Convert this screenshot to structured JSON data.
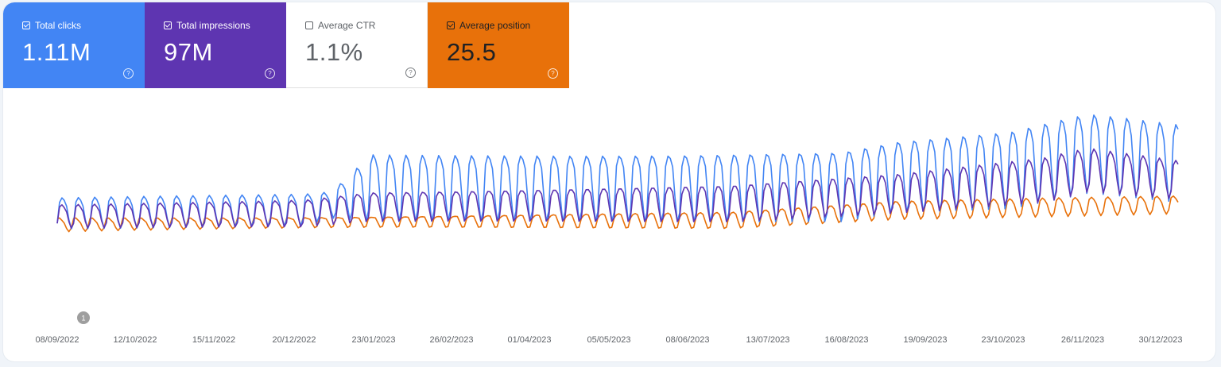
{
  "metrics": [
    {
      "id": "clicks",
      "label": "Total clicks",
      "value": "1.11M",
      "checked": true,
      "color": "#4285f4"
    },
    {
      "id": "impressions",
      "label": "Total impressions",
      "value": "97M",
      "checked": true,
      "color": "#5e35b1"
    },
    {
      "id": "ctr",
      "label": "Average CTR",
      "value": "1.1%",
      "checked": false,
      "color": "#ffffff"
    },
    {
      "id": "position",
      "label": "Average position",
      "value": "25.5",
      "checked": true,
      "color": "#e8710a"
    }
  ],
  "icons": {
    "help": "help-icon",
    "checkbox": "checkbox-icon"
  },
  "annotation": {
    "label": "1"
  },
  "chart_data": {
    "type": "line",
    "x_range": [
      "2022-09-08",
      "2023-12-30"
    ],
    "x_ticks": [
      "08/09/2022",
      "12/10/2022",
      "15/11/2022",
      "20/12/2022",
      "23/01/2023",
      "26/02/2023",
      "01/04/2023",
      "05/05/2023",
      "08/06/2023",
      "13/07/2023",
      "16/08/2023",
      "19/09/2023",
      "23/10/2023",
      "26/11/2023",
      "30/12/2023"
    ],
    "y_axis_labels": "hidden",
    "grid": false,
    "series": [
      {
        "name": "Total clicks",
        "color": "#4285f4",
        "pattern": "weekly",
        "trend": [
          [
            0,
            0.4
          ],
          [
            0.22,
            0.42
          ],
          [
            0.245,
            0.45
          ],
          [
            0.28,
            0.55
          ],
          [
            0.55,
            0.55
          ],
          [
            0.7,
            0.56
          ],
          [
            0.75,
            0.62
          ],
          [
            0.85,
            0.66
          ],
          [
            0.92,
            0.76
          ],
          [
            0.95,
            0.74
          ],
          [
            1.0,
            0.7
          ]
        ],
        "amplitude": [
          [
            0,
            0.3
          ],
          [
            0.22,
            0.35
          ],
          [
            0.245,
            0.3
          ],
          [
            0.28,
            0.75
          ],
          [
            0.6,
            0.75
          ],
          [
            0.75,
            0.75
          ],
          [
            0.9,
            0.82
          ],
          [
            1.0,
            0.8
          ]
        ]
      },
      {
        "name": "Total impressions",
        "color": "#5e35b1",
        "pattern": "weekly",
        "trend": [
          [
            0,
            0.38
          ],
          [
            0.22,
            0.4
          ],
          [
            0.28,
            0.44
          ],
          [
            0.6,
            0.46
          ],
          [
            0.75,
            0.52
          ],
          [
            0.88,
            0.6
          ],
          [
            0.92,
            0.66
          ],
          [
            1.0,
            0.6
          ]
        ],
        "amplitude": [
          [
            0,
            0.25
          ],
          [
            0.28,
            0.35
          ],
          [
            0.75,
            0.38
          ],
          [
            0.9,
            0.45
          ],
          [
            1.0,
            0.4
          ]
        ]
      },
      {
        "name": "Average position",
        "color": "#e8710a",
        "pattern": "weekly",
        "trend": [
          [
            0,
            0.33
          ],
          [
            0.3,
            0.35
          ],
          [
            0.6,
            0.36
          ],
          [
            0.75,
            0.42
          ],
          [
            1.0,
            0.45
          ]
        ],
        "amplitude": [
          [
            0,
            0.15
          ],
          [
            0.7,
            0.15
          ],
          [
            1.0,
            0.18
          ]
        ]
      }
    ]
  }
}
